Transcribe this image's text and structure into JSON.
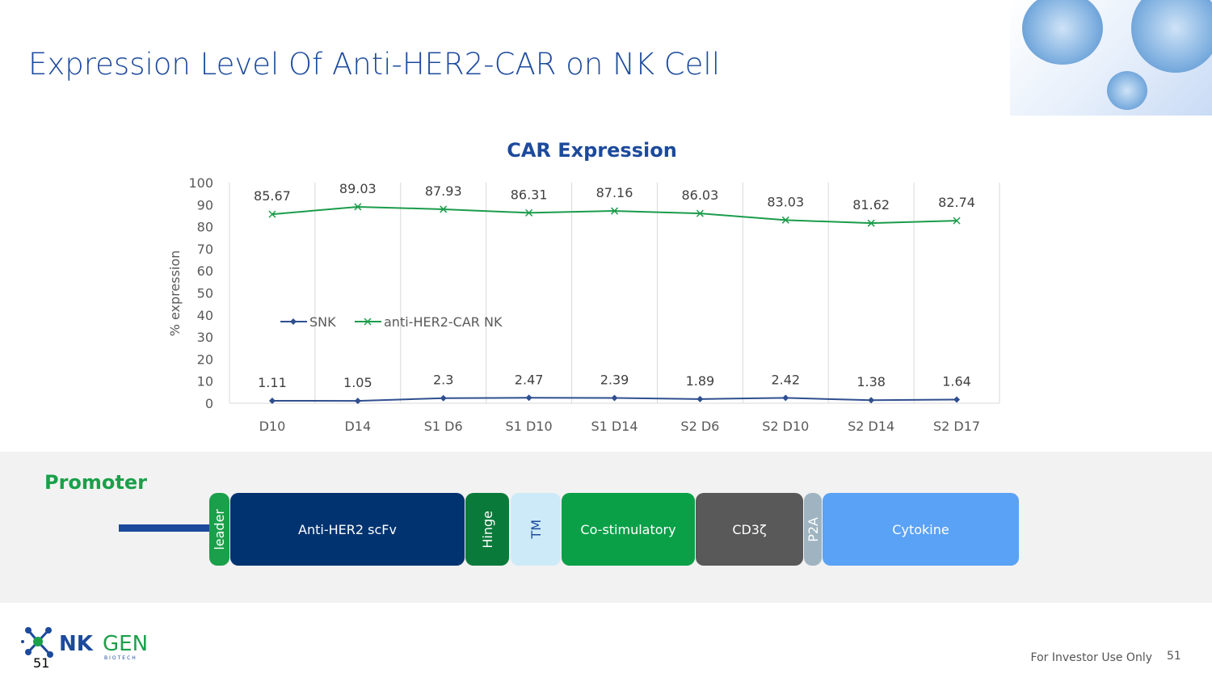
{
  "slide": {
    "title": "Expression Level Of Anti-HER2-CAR on NK Cell",
    "footer": "For Investor Use Only",
    "page_number": "51",
    "logo_page_number": "51",
    "logo_text": "NKGEN",
    "logo_sub": "BIOTECH"
  },
  "chart_data": {
    "type": "line",
    "title": "CAR Expression",
    "xlabel": "",
    "ylabel": "% expression",
    "ylim": [
      0,
      100
    ],
    "yticks": [
      0,
      10,
      20,
      30,
      40,
      50,
      60,
      70,
      80,
      90,
      100
    ],
    "categories": [
      "D10",
      "D14",
      "S1 D6",
      "S1 D10",
      "S1 D14",
      "S2 D6",
      "S2 D10",
      "S2 D14",
      "S2 D17"
    ],
    "grid": "vertical",
    "legend": "middle-left",
    "series": [
      {
        "name": "SNK",
        "color": "#2f4f8f",
        "marker": "diamond",
        "values": [
          1.11,
          1.05,
          2.3,
          2.47,
          2.39,
          1.89,
          2.42,
          1.38,
          1.64
        ]
      },
      {
        "name": "anti-HER2-CAR NK",
        "color": "#1a9c4a",
        "marker": "x",
        "values": [
          85.67,
          89.03,
          87.93,
          86.31,
          87.16,
          86.03,
          83.03,
          81.62,
          82.74
        ]
      }
    ]
  },
  "construct": {
    "promoter_label": "Promoter",
    "segments": [
      {
        "label": "leader",
        "color": "#1aa04a"
      },
      {
        "label": "Anti-HER2 scFv",
        "color": "#003370"
      },
      {
        "label": "Hinge",
        "color": "#0a7a3a"
      },
      {
        "label": "TM",
        "color": "#cdeaf8"
      },
      {
        "label": "Co-stimulatory",
        "color": "#0aa048"
      },
      {
        "label": "CD3ζ",
        "color": "#595959"
      },
      {
        "label": "P2A",
        "color": "#9fb4c0"
      },
      {
        "label": "Cytokine",
        "color": "#5aa2f5"
      }
    ]
  }
}
